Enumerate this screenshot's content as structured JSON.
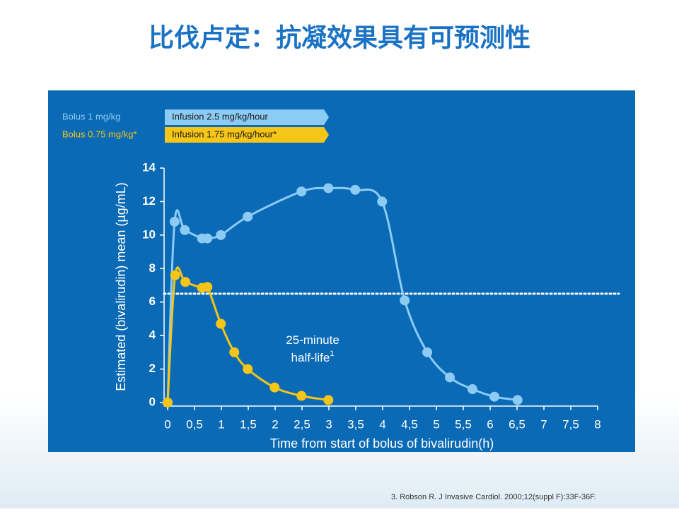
{
  "slide_title": "比伐卢定：抗凝效果具有可预测性",
  "footnote": "3.  Robson R. J Invasive Cardiol. 2000;12(suppl F):33F-36F.",
  "chart_data": {
    "type": "line",
    "x_label": "Time from start of bolus of bivalirudin(h)",
    "y_label": "Estimated (bivalirudin) mean (µg/mL)",
    "xlim": [
      0,
      8
    ],
    "xticks": [
      0,
      {
        "value": 0.5,
        "label": "0,5"
      },
      1,
      {
        "value": 1.5,
        "label": "1,5"
      },
      2,
      {
        "value": 2.5,
        "label": "2,5"
      },
      3,
      {
        "value": 3.5,
        "label": "3,5"
      },
      4,
      {
        "value": 4.5,
        "label": "4,5"
      },
      5,
      {
        "value": 5.5,
        "label": "5,5"
      },
      6,
      {
        "value": 6.5,
        "label": "6,5"
      },
      7,
      {
        "value": 7.5,
        "label": "7,5"
      },
      8
    ],
    "ylim": [
      0,
      14
    ],
    "yticks": [
      0,
      2,
      4,
      6,
      8,
      10,
      12,
      14
    ],
    "hline": 6.5,
    "annotation_lines": [
      "25-minute",
      "half-life"
    ],
    "annotation_sup": "1",
    "series": [
      {
        "name": "Bolus 1 mg/kg",
        "infusion": "Infusion 2.5 mg/kg/hour",
        "color": "#8ccbf3",
        "x": [
          0,
          0.13,
          0.32,
          0.64,
          0.74,
          0.99,
          1.49,
          2.49,
          2.99,
          3.49,
          3.99,
          4.41,
          4.83,
          5.25,
          5.67,
          6.08,
          6.51
        ],
        "values": [
          0,
          10.8,
          10.3,
          9.8,
          9.8,
          10.0,
          11.1,
          12.6,
          12.8,
          12.7,
          12.0,
          6.1,
          3.0,
          1.5,
          0.8,
          0.35,
          0.15
        ]
      },
      {
        "name": "Bolus 0.75 mg/kg*",
        "infusion": "Infusion 1.75 mg/kg/hour*",
        "color": "#f5c518",
        "x": [
          0,
          0.14,
          0.33,
          0.64,
          0.74,
          0.99,
          1.24,
          1.49,
          1.99,
          2.49,
          2.99
        ],
        "values": [
          0,
          7.6,
          7.2,
          6.85,
          6.9,
          4.7,
          3.0,
          2.0,
          0.9,
          0.4,
          0.15
        ]
      }
    ]
  }
}
